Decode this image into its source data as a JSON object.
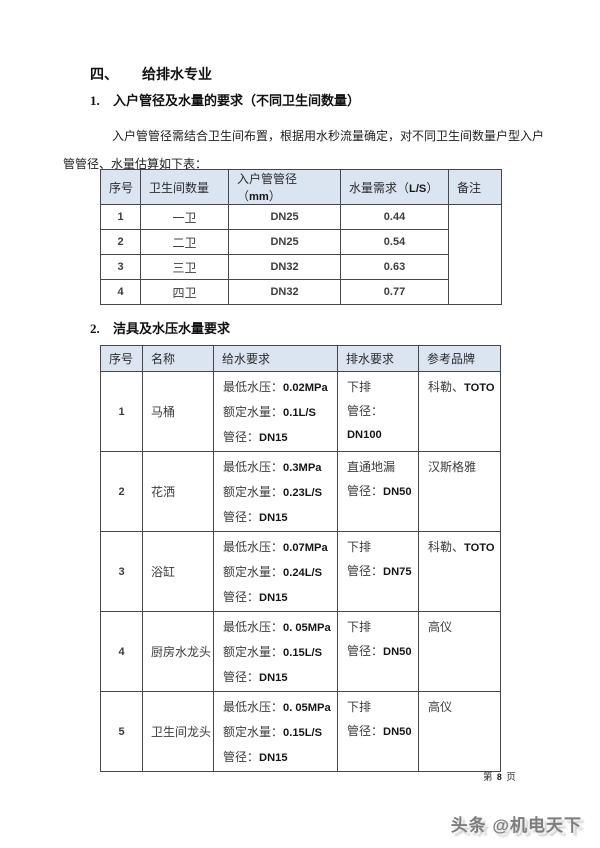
{
  "heading": {
    "number": "四、",
    "title": "给排水专业"
  },
  "item1": {
    "number": "1.",
    "title": "入户管径及水量的要求（不同卫生间数量）"
  },
  "paragraph": "入户管管径需结合卫生间布置，根据用水秒流量确定，对不同卫生间数量户型入户管管径、水量估算如下表：",
  "item2": {
    "number": "2.",
    "title": "洁具及水压水量要求"
  },
  "table1": {
    "headers": [
      "序号",
      "卫生间数量",
      "入户管管径（mm）",
      "水量需求（L/S）",
      "备注"
    ],
    "rows": [
      {
        "no": "1",
        "bathrooms": "一卫",
        "pipe": "DN25",
        "flow": "0.44"
      },
      {
        "no": "2",
        "bathrooms": "二卫",
        "pipe": "DN25",
        "flow": "0.54"
      },
      {
        "no": "3",
        "bathrooms": "三卫",
        "pipe": "DN32",
        "flow": "0.63"
      },
      {
        "no": "4",
        "bathrooms": "四卫",
        "pipe": "DN32",
        "flow": "0.77"
      }
    ],
    "remark": ""
  },
  "table2": {
    "headers": [
      "序号",
      "名称",
      "给水要求",
      "排水要求",
      "参考品牌"
    ],
    "rows": [
      {
        "no": "1",
        "name": "马桶",
        "supply": [
          "最低水压：0.02MPa",
          "额定水量：0.1L/S",
          "管径：DN15"
        ],
        "drain": [
          "下排",
          "管径：DN100"
        ],
        "brand": "科勒、TOTO"
      },
      {
        "no": "2",
        "name": "花洒",
        "supply": [
          "最低水压：0.3MPa",
          "额定水量：0.23L/S",
          "管径：DN15"
        ],
        "drain": [
          "直通地漏",
          "管径：DN50"
        ],
        "brand": "汉斯格雅"
      },
      {
        "no": "3",
        "name": "浴缸",
        "supply": [
          "最低水压：0.07MPa",
          "额定水量：0.24L/S",
          "管径：DN15"
        ],
        "drain": [
          "下排",
          "管径：DN75"
        ],
        "brand": "科勒、TOTO"
      },
      {
        "no": "4",
        "name": "厨房水龙头",
        "supply": [
          "最低水压：0. 05MPa",
          "额定水量：0.15L/S",
          "管径：DN15"
        ],
        "drain": [
          "下排",
          "管径：DN50"
        ],
        "brand": "高仪"
      },
      {
        "no": "5",
        "name": "卫生间龙头",
        "supply": [
          "最低水压：0. 05MPa",
          "额定水量：0.15L/S",
          "管径：DN15"
        ],
        "drain": [
          "下排",
          "管径：DN50"
        ],
        "brand": "高仪"
      }
    ]
  },
  "footer": {
    "page_text": "第 8 页"
  },
  "watermark": "头条 @机电天下",
  "colors": {
    "header_bg": "#dbe5f1",
    "table_border": "#474747",
    "watermark_gray": "#7d7d7d"
  }
}
